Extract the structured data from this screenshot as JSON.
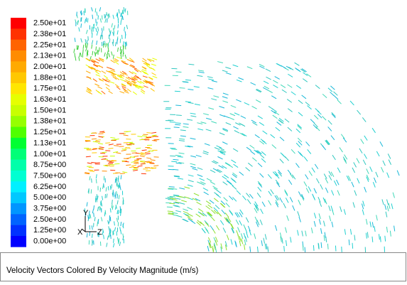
{
  "legend": {
    "entries": [
      {
        "label": "2.50e+01",
        "color": "#ff0000"
      },
      {
        "label": "2.38e+01",
        "color": "#ff3200"
      },
      {
        "label": "2.25e+01",
        "color": "#ff6400"
      },
      {
        "label": "2.13e+01",
        "color": "#ff8c00"
      },
      {
        "label": "2.00e+01",
        "color": "#ffaa00"
      },
      {
        "label": "1.88e+01",
        "color": "#ffc800"
      },
      {
        "label": "1.75e+01",
        "color": "#ffe600"
      },
      {
        "label": "1.63e+01",
        "color": "#e6ff00"
      },
      {
        "label": "1.50e+01",
        "color": "#c8ff00"
      },
      {
        "label": "1.38e+01",
        "color": "#96ff00"
      },
      {
        "label": "1.25e+01",
        "color": "#50ff00"
      },
      {
        "label": "1.13e+01",
        "color": "#00ff32"
      },
      {
        "label": "1.00e+01",
        "color": "#00ff78"
      },
      {
        "label": "8.75e+00",
        "color": "#00ffaa"
      },
      {
        "label": "7.50e+00",
        "color": "#00ffd2"
      },
      {
        "label": "6.25e+00",
        "color": "#00f0ff"
      },
      {
        "label": "5.00e+00",
        "color": "#00c8ff"
      },
      {
        "label": "3.75e+00",
        "color": "#0096ff"
      },
      {
        "label": "2.50e+00",
        "color": "#0064ff"
      },
      {
        "label": "1.25e+00",
        "color": "#0032ff"
      },
      {
        "label": "0.00e+00",
        "color": "#0000ff"
      }
    ]
  },
  "axes_triad": {
    "y": "Y",
    "x": "X",
    "z": "Z"
  },
  "caption": "Velocity Vectors Colored By Velocity Magnitude (m/s)"
}
